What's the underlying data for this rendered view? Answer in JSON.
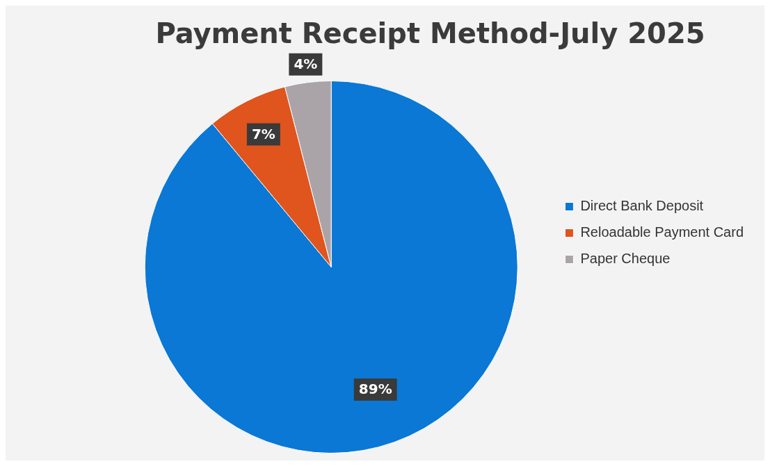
{
  "chart_data": {
    "type": "pie",
    "title": "Payment Receipt Method-July 2025",
    "categories": [
      "Direct Bank Deposit",
      "Reloadable Payment Card",
      "Paper Cheque"
    ],
    "values": [
      89,
      7,
      4
    ],
    "colors": [
      "#0a78d4",
      "#e0541e",
      "#aaa4a8"
    ],
    "value_labels": [
      "89%",
      "7%",
      "4%"
    ],
    "legend": "right"
  }
}
